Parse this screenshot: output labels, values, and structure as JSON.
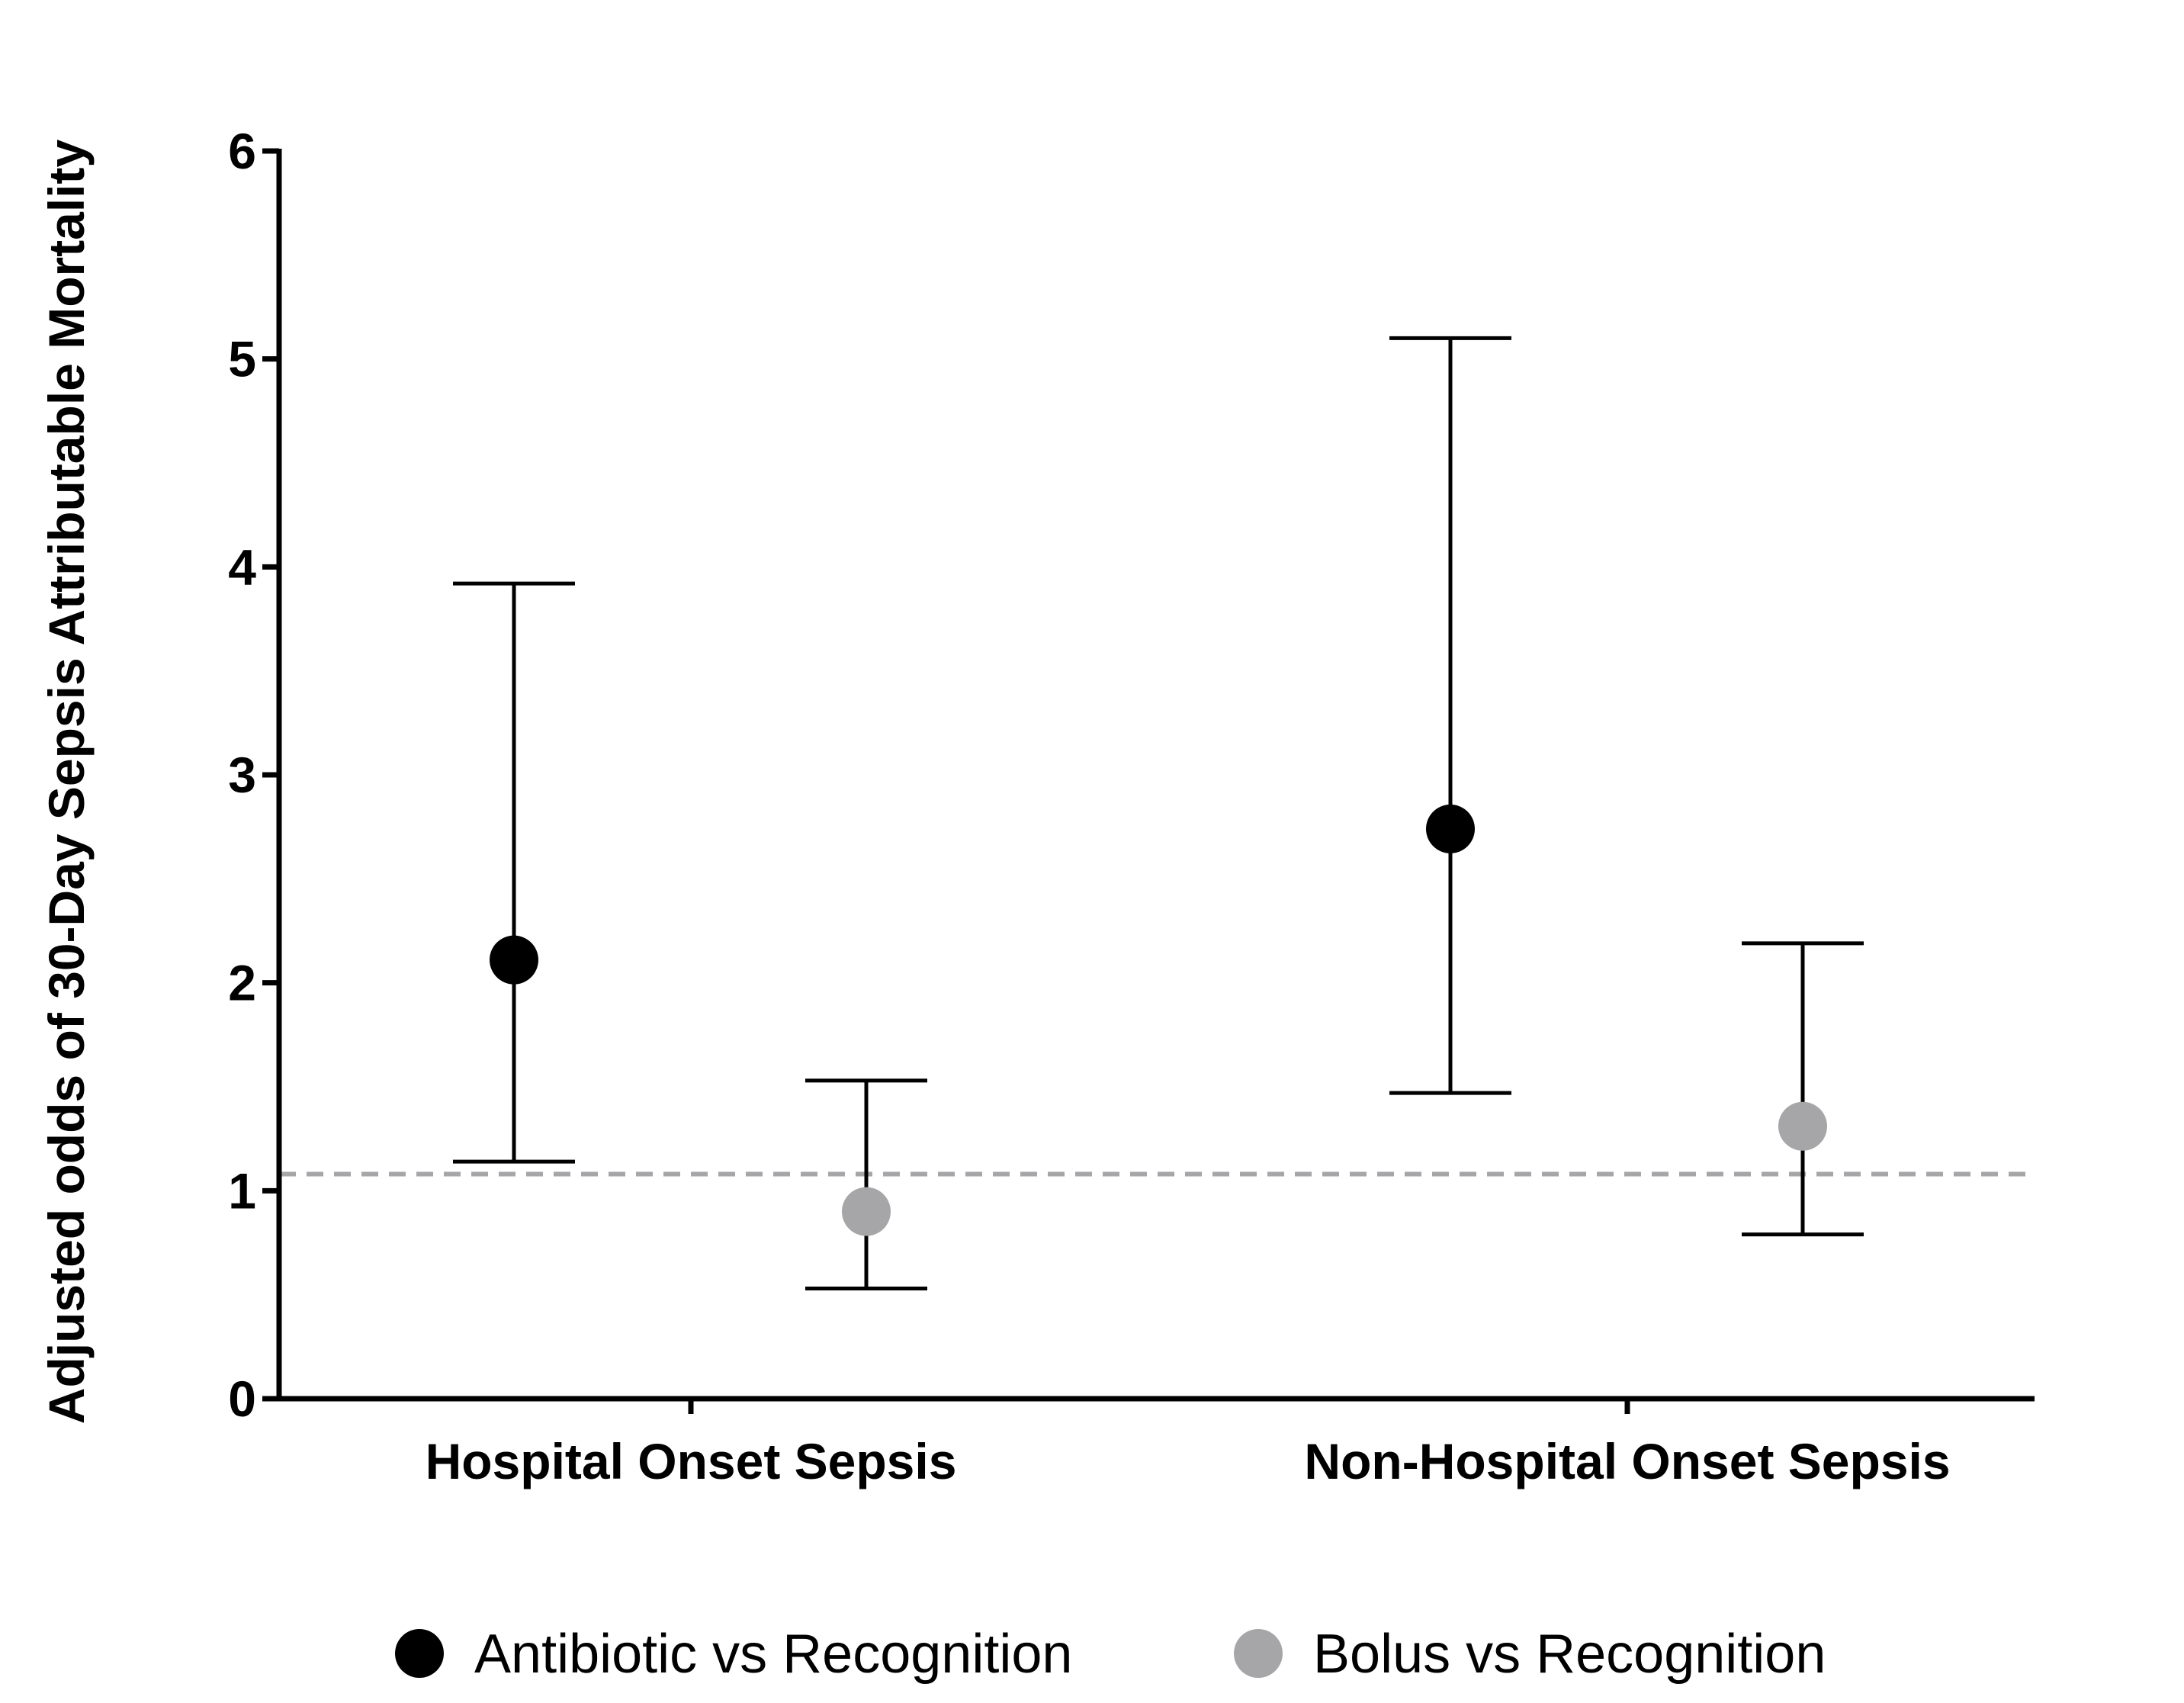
{
  "chart_data": {
    "type": "scatter",
    "subtype": "point-with-error-bars",
    "title": "",
    "xlabel": "",
    "ylabel": "Adjusted odds of 30-Day Sepsis Attributable Mortality",
    "ylim": [
      0,
      6
    ],
    "yticks": [
      "0",
      "1",
      "2",
      "3",
      "4",
      "5",
      "6"
    ],
    "categories": [
      "Hospital Onset Sepsis",
      "Non-Hospital Onset Sepsis"
    ],
    "reference_line": {
      "y": 1.08,
      "style": "dashed",
      "color": "#a6a6a8"
    },
    "grid": false,
    "legend_position": "bottom",
    "series": [
      {
        "name": "Antibiotic vs Recognition",
        "color": "#000000",
        "points": [
          {
            "category": "Hospital Onset Sepsis",
            "value": 2.11,
            "lower": 1.14,
            "upper": 3.92
          },
          {
            "category": "Non-Hospital Onset Sepsis",
            "value": 2.74,
            "lower": 1.47,
            "upper": 5.1
          }
        ]
      },
      {
        "name": "Bolus vs Recognition",
        "color": "#a6a6a8",
        "points": [
          {
            "category": "Hospital Onset Sepsis",
            "value": 0.9,
            "lower": 0.53,
            "upper": 1.53
          },
          {
            "category": "Non-Hospital Onset Sepsis",
            "value": 1.31,
            "lower": 0.79,
            "upper": 2.19
          }
        ]
      }
    ]
  }
}
